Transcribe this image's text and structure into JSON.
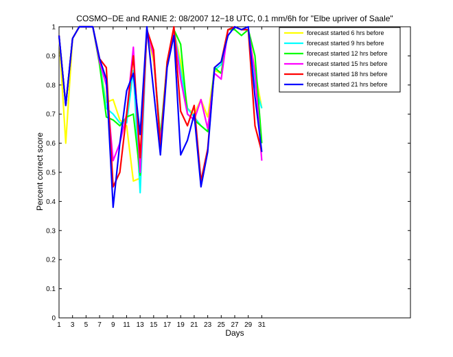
{
  "chart_data": {
    "type": "line",
    "title": "COSMO−DE and RANIE 2: 08/2007 12−18 UTC, 0.1 mm/6h for \"Elbe upriver of Saale\"",
    "xlabel": "Days",
    "ylabel": "Percent correct score",
    "xlim": [
      1,
      53
    ],
    "ylim": [
      0,
      1
    ],
    "xticks": [
      1,
      3,
      5,
      7,
      9,
      11,
      13,
      15,
      17,
      19,
      21,
      23,
      25,
      27,
      29,
      31
    ],
    "yticks": [
      0,
      0.1,
      0.2,
      0.3,
      0.4,
      0.5,
      0.6,
      0.7,
      0.8,
      0.9,
      1
    ],
    "grid": false,
    "legend_position": "top-right",
    "x": [
      1,
      2,
      3,
      4,
      5,
      6,
      7,
      8,
      9,
      10,
      11,
      12,
      13,
      14,
      15,
      16,
      17,
      18,
      19,
      20,
      21,
      22,
      23,
      24,
      25,
      26,
      27,
      28,
      29,
      30,
      31
    ],
    "series": [
      {
        "name": "forecast started 6 hrs before",
        "color": "#ffff00",
        "values": [
          0.97,
          0.6,
          0.96,
          1.0,
          1.0,
          1.0,
          0.88,
          0.74,
          0.75,
          0.68,
          0.66,
          0.47,
          0.48,
          0.99,
          0.88,
          0.62,
          0.88,
          0.99,
          0.88,
          0.72,
          0.7,
          0.75,
          0.69,
          0.85,
          0.84,
          0.99,
          1.0,
          0.99,
          0.99,
          0.85,
          0.72
        ]
      },
      {
        "name": "forecast started 9 hrs before",
        "color": "#00ffff",
        "values": [
          0.97,
          0.73,
          0.96,
          1.0,
          1.0,
          1.0,
          0.88,
          0.72,
          0.7,
          0.67,
          0.67,
          0.85,
          0.43,
          0.99,
          0.9,
          0.6,
          0.87,
          0.99,
          0.85,
          0.72,
          0.69,
          0.66,
          0.64,
          0.85,
          0.87,
          0.99,
          1.0,
          0.99,
          0.99,
          0.8,
          0.72
        ]
      },
      {
        "name": "forecast started 12 hrs before",
        "color": "#00ff00",
        "values": [
          0.97,
          0.73,
          0.96,
          1.0,
          1.0,
          1.0,
          0.87,
          0.69,
          0.68,
          0.66,
          0.69,
          0.7,
          0.49,
          0.99,
          0.9,
          0.62,
          0.87,
          0.99,
          0.94,
          0.7,
          0.68,
          0.66,
          0.64,
          0.86,
          0.84,
          0.99,
          0.99,
          0.97,
          0.99,
          0.9,
          0.6
        ]
      },
      {
        "name": "forecast started 15 hrs before",
        "color": "#ff00ff",
        "values": [
          0.97,
          0.73,
          0.96,
          1.0,
          1.0,
          1.0,
          0.88,
          0.8,
          0.54,
          0.6,
          0.7,
          0.93,
          0.5,
          0.99,
          0.9,
          0.6,
          0.87,
          0.99,
          0.82,
          0.7,
          0.68,
          0.75,
          0.65,
          0.84,
          0.82,
          0.99,
          1.0,
          0.99,
          0.99,
          0.84,
          0.54
        ]
      },
      {
        "name": "forecast started 18 hrs before",
        "color": "#ff0000",
        "values": [
          0.97,
          0.73,
          0.96,
          1.0,
          1.0,
          1.0,
          0.89,
          0.86,
          0.45,
          0.5,
          0.7,
          0.9,
          0.55,
          0.99,
          0.92,
          0.58,
          0.88,
          1.0,
          0.71,
          0.66,
          0.73,
          0.47,
          0.58,
          0.86,
          0.88,
          0.99,
          1.0,
          0.99,
          0.99,
          0.66,
          0.57
        ]
      },
      {
        "name": "forecast started 21 hrs before",
        "color": "#0000ff",
        "values": [
          0.97,
          0.73,
          0.96,
          1.0,
          1.0,
          1.0,
          0.89,
          0.82,
          0.38,
          0.6,
          0.78,
          0.84,
          0.63,
          1.0,
          0.78,
          0.56,
          0.86,
          0.97,
          0.56,
          0.61,
          0.7,
          0.45,
          0.57,
          0.86,
          0.88,
          0.97,
          1.0,
          0.99,
          1.0,
          0.76,
          0.57
        ]
      }
    ]
  }
}
